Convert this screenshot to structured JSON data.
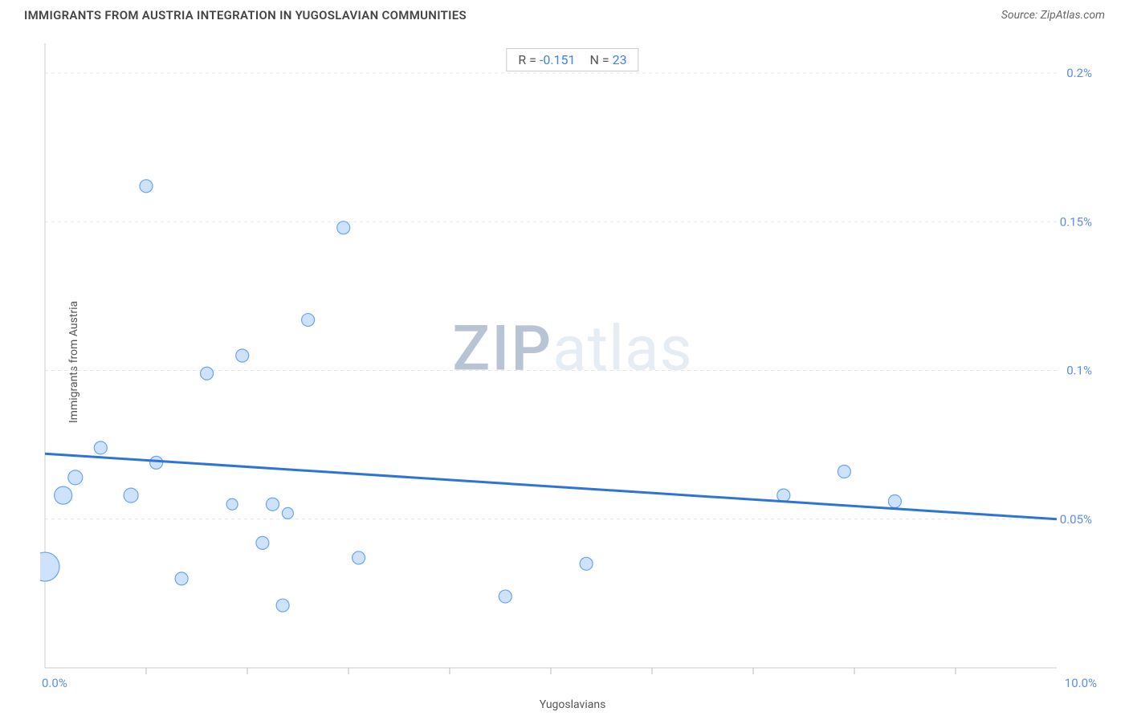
{
  "header": {
    "title": "IMMIGRANTS FROM AUSTRIA INTEGRATION IN YUGOSLAVIAN COMMUNITIES",
    "source": "Source: ZipAtlas.com"
  },
  "chart": {
    "type": "scatter",
    "x_label": "Yugoslavians",
    "y_label": "Immigrants from Austria",
    "xlim": [
      0.0,
      10.0
    ],
    "ylim": [
      0.0,
      0.21
    ],
    "x_ticks": [
      0.0,
      10.0
    ],
    "x_tick_labels": [
      "0.0%",
      "10.0%"
    ],
    "x_minor_ticks": [
      1.0,
      2.0,
      3.0,
      4.0,
      5.0,
      6.0,
      7.0,
      8.0,
      9.0
    ],
    "y_ticks": [
      0.05,
      0.1,
      0.15,
      0.2
    ],
    "y_tick_labels": [
      "0.05%",
      "0.1%",
      "0.15%",
      "0.2%"
    ],
    "grid_color": "#e7e7e7",
    "grid_dash": "4,4",
    "axis_line_color": "#cccccc",
    "tick_color": "#bbbbbb",
    "background_color": "#ffffff",
    "axis_label_color": "#555555",
    "axis_num_color": "#5a8dee",
    "point_fill": "#cfe2fb",
    "point_stroke": "#6aa3ef",
    "point_stroke_width": 1.2,
    "trend_color": "#2f73d8",
    "trend_width": 3,
    "points": [
      {
        "x": 0.0,
        "y": 0.034,
        "r": 18
      },
      {
        "x": 0.18,
        "y": 0.058,
        "r": 11
      },
      {
        "x": 0.3,
        "y": 0.064,
        "r": 9
      },
      {
        "x": 0.55,
        "y": 0.074,
        "r": 8
      },
      {
        "x": 0.85,
        "y": 0.058,
        "r": 9
      },
      {
        "x": 1.0,
        "y": 0.162,
        "r": 8
      },
      {
        "x": 1.1,
        "y": 0.069,
        "r": 8
      },
      {
        "x": 1.35,
        "y": 0.03,
        "r": 8
      },
      {
        "x": 1.6,
        "y": 0.099,
        "r": 8
      },
      {
        "x": 1.85,
        "y": 0.055,
        "r": 7
      },
      {
        "x": 1.95,
        "y": 0.105,
        "r": 8
      },
      {
        "x": 2.15,
        "y": 0.042,
        "r": 8
      },
      {
        "x": 2.25,
        "y": 0.055,
        "r": 8
      },
      {
        "x": 2.35,
        "y": 0.021,
        "r": 8
      },
      {
        "x": 2.4,
        "y": 0.052,
        "r": 7
      },
      {
        "x": 2.6,
        "y": 0.117,
        "r": 8
      },
      {
        "x": 2.95,
        "y": 0.148,
        "r": 8
      },
      {
        "x": 3.1,
        "y": 0.037,
        "r": 8
      },
      {
        "x": 4.55,
        "y": 0.024,
        "r": 8
      },
      {
        "x": 5.35,
        "y": 0.035,
        "r": 8
      },
      {
        "x": 7.3,
        "y": 0.058,
        "r": 8
      },
      {
        "x": 7.9,
        "y": 0.066,
        "r": 8
      },
      {
        "x": 8.4,
        "y": 0.056,
        "r": 8
      }
    ],
    "trend_line": {
      "x1": 0.0,
      "y1": 0.072,
      "x2": 10.0,
      "y2": 0.05
    },
    "stats": {
      "r_label": "R =",
      "r_value": "-0.151",
      "n_label": "N =",
      "n_value": "23"
    },
    "watermark": {
      "zip": "ZIP",
      "atlas": "atlas"
    }
  }
}
